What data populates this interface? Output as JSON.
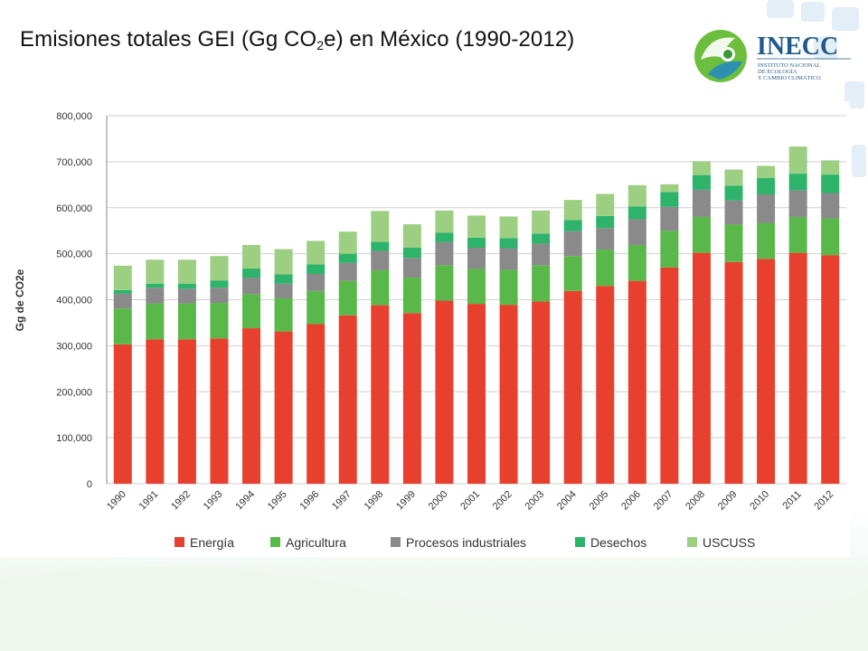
{
  "slide": {
    "title_pre": "Emisiones totales GEI (Gg CO",
    "title_sub": "2",
    "title_post": "e) en México (1990-2012)"
  },
  "logo": {
    "name": "INECC",
    "subtitle_lines": [
      "INSTITUTO NACIONAL",
      "DE ECOLOGÍA",
      "Y CAMBIO CLIMÁTICO"
    ]
  },
  "chart_data": {
    "type": "bar",
    "stacked": true,
    "title": "Emisiones totales GEI (Gg CO2e) en México (1990-2012)",
    "ylabel": "Gg de CO2e",
    "xlabel": "",
    "ylim": [
      0,
      800000
    ],
    "yticks": [
      0,
      100000,
      200000,
      300000,
      400000,
      500000,
      600000,
      700000,
      800000
    ],
    "ytick_labels": [
      "0",
      "100,000",
      "200,000",
      "300,000",
      "400,000",
      "500,000",
      "600,000",
      "700,000",
      "800,000"
    ],
    "grid": true,
    "legend_position": "bottom",
    "categories": [
      "1990",
      "1991",
      "1992",
      "1993",
      "1994",
      "1995",
      "1996",
      "1997",
      "1998",
      "1999",
      "2000",
      "2001",
      "2002",
      "2003",
      "2004",
      "2005",
      "2006",
      "2007",
      "2008",
      "2009",
      "2010",
      "2011",
      "2012"
    ],
    "series": [
      {
        "name": "Energía",
        "color": "#e8402f",
        "values": [
          303000,
          314000,
          314000,
          316000,
          338000,
          331000,
          347000,
          366000,
          388000,
          371000,
          398000,
          391000,
          389000,
          396000,
          419000,
          430000,
          441000,
          470000,
          502000,
          482000,
          489000,
          502000,
          497000
        ]
      },
      {
        "name": "Agricultura",
        "color": "#5ab84a",
        "values": [
          78000,
          78000,
          78000,
          77000,
          74000,
          72000,
          72000,
          75000,
          76000,
          77000,
          77000,
          76000,
          76000,
          79000,
          76000,
          79000,
          78000,
          80000,
          78000,
          82000,
          78000,
          78000,
          80000
        ]
      },
      {
        "name": "Procesos industriales",
        "color": "#8a8a8a",
        "values": [
          32000,
          34000,
          32000,
          33000,
          36000,
          32000,
          37000,
          39000,
          42000,
          43000,
          50000,
          46000,
          47000,
          47000,
          54000,
          47000,
          56000,
          52000,
          59000,
          52000,
          62000,
          58000,
          55000
        ]
      },
      {
        "name": "Desechos",
        "color": "#2db36a",
        "values": [
          8000,
          9000,
          11000,
          16000,
          20000,
          20000,
          21000,
          20000,
          20000,
          22000,
          21000,
          22000,
          22000,
          22000,
          24000,
          26000,
          28000,
          32000,
          32000,
          32000,
          36000,
          36000,
          40000
        ]
      },
      {
        "name": "USCUSS",
        "color": "#9ccf82",
        "values": [
          53000,
          52000,
          52000,
          53000,
          51000,
          55000,
          51000,
          48000,
          67000,
          51000,
          48000,
          48000,
          47000,
          50000,
          44000,
          48000,
          46000,
          17000,
          30000,
          35000,
          26000,
          59000,
          31000
        ]
      }
    ]
  }
}
